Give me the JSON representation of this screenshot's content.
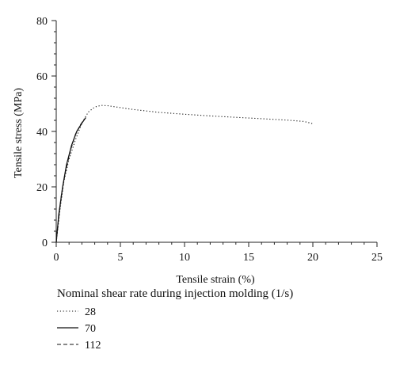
{
  "chart_data": {
    "type": "line",
    "title": "",
    "xlabel": "Tensile strain (%)",
    "ylabel": "Tensile stress (MPa)",
    "xlim": [
      0,
      25
    ],
    "ylim": [
      0,
      80
    ],
    "x_ticks": [
      0,
      5,
      10,
      15,
      20,
      25
    ],
    "y_ticks": [
      0,
      20,
      40,
      60,
      80
    ],
    "grid": false,
    "legend": {
      "title": "Nominal shear rate during injection molding (1/s)",
      "placement": "bottom"
    },
    "series": [
      {
        "name": "28",
        "line_style": "dotted",
        "points": [
          [
            0,
            0
          ],
          [
            0.3,
            12
          ],
          [
            0.6,
            22
          ],
          [
            1.0,
            30
          ],
          [
            1.5,
            37
          ],
          [
            2.0,
            43
          ],
          [
            2.5,
            47
          ],
          [
            3.0,
            48.8
          ],
          [
            3.5,
            49.4
          ],
          [
            4.0,
            49.3
          ],
          [
            5.0,
            48.6
          ],
          [
            6.0,
            47.9
          ],
          [
            8.0,
            46.9
          ],
          [
            10.0,
            46.2
          ],
          [
            12.0,
            45.6
          ],
          [
            14.0,
            45.1
          ],
          [
            16.0,
            44.6
          ],
          [
            18.0,
            44.1
          ],
          [
            19.3,
            43.6
          ],
          [
            20.0,
            42.8
          ]
        ]
      },
      {
        "name": "70",
        "line_style": "solid",
        "points": [
          [
            0,
            0
          ],
          [
            0.2,
            10
          ],
          [
            0.5,
            20
          ],
          [
            0.8,
            28
          ],
          [
            1.2,
            35
          ],
          [
            1.6,
            40
          ],
          [
            2.0,
            43
          ],
          [
            2.3,
            45
          ]
        ]
      },
      {
        "name": "112",
        "line_style": "dashed",
        "points": [
          [
            0,
            0
          ],
          [
            0.15,
            7
          ],
          [
            0.4,
            17
          ],
          [
            0.7,
            25
          ],
          [
            1.1,
            33
          ],
          [
            1.5,
            39
          ],
          [
            1.9,
            42.5
          ],
          [
            2.2,
            44.5
          ]
        ]
      }
    ]
  }
}
